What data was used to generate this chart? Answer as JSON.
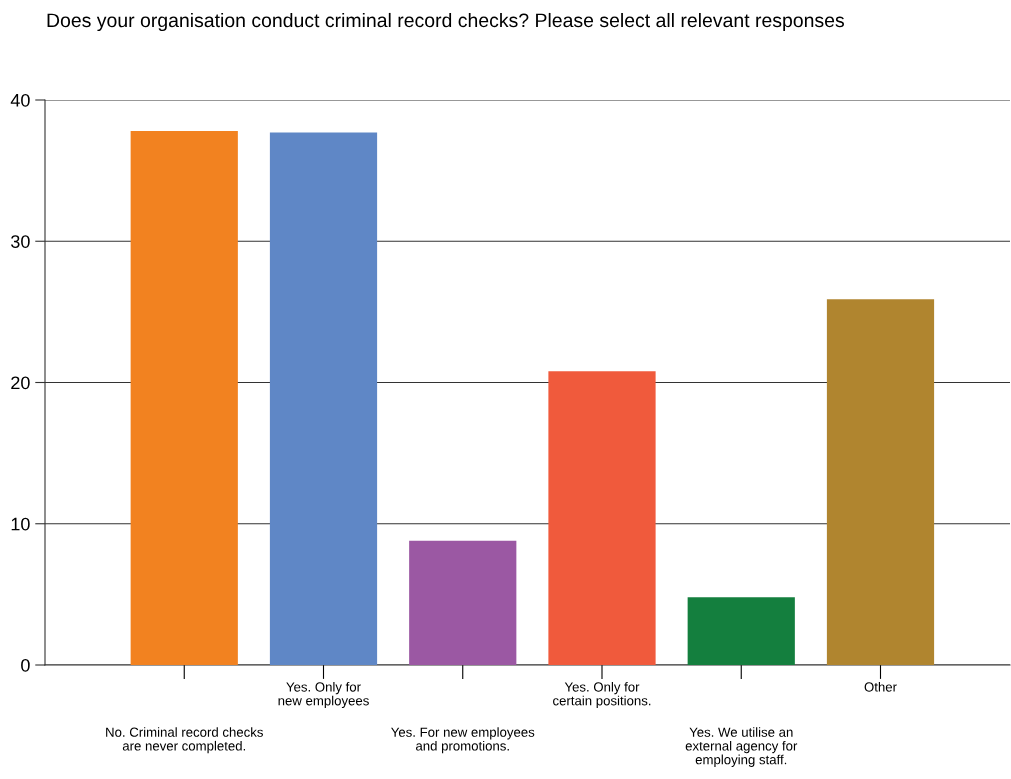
{
  "chart_data": {
    "type": "bar",
    "title": "Does your organisation conduct criminal record checks? Please select all relevant responses",
    "categories": [
      "No. Criminal record checks\nare never completed.",
      "Yes. Only for\nnew employees",
      "Yes. For new employees\nand promotions.",
      "Yes. Only for\ncertain positions.",
      "Yes. We utilise an\nexternal agency for\nemploying staff.",
      "Other"
    ],
    "values": [
      37.8,
      37.7,
      8.8,
      20.8,
      4.8,
      25.9
    ],
    "colors": [
      "#f28220",
      "#5f87c6",
      "#9b58a3",
      "#f05a3c",
      "#147f3e",
      "#b0852f"
    ],
    "ylim": [
      0,
      40
    ],
    "yticks": [
      0,
      10,
      20,
      30,
      40
    ],
    "grid": "y"
  }
}
